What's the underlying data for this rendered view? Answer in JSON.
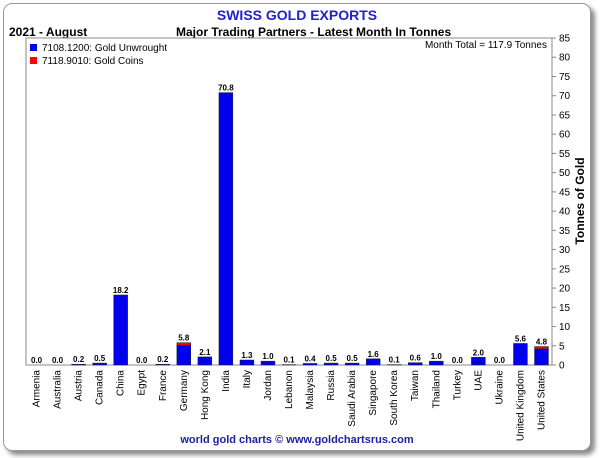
{
  "chart_data": {
    "type": "bar",
    "title": "SWISS GOLD EXPORTS",
    "period": "2021 - August",
    "subtitle": "Major Trading Partners - Latest Month In Tonnes",
    "month_total": "Month Total = 117.9 Tonnes",
    "ylabel": "Tonnes of Gold",
    "ylim": [
      0,
      85
    ],
    "yticks": [
      0,
      5,
      10,
      15,
      20,
      25,
      30,
      35,
      40,
      45,
      50,
      55,
      60,
      65,
      70,
      75,
      80,
      85
    ],
    "grid": false,
    "stacked": true,
    "legend_position": "top-left",
    "categories": [
      "Armenia",
      "Australia",
      "Austria",
      "Canada",
      "China",
      "Egypt",
      "France",
      "Germany",
      "Hong Kong",
      "India",
      "Italy",
      "Jordan",
      "Lebanon",
      "Malaysia",
      "Russia",
      "Saudi Arabia",
      "Singapore",
      "South Korea",
      "Taiwan",
      "Thailand",
      "Turkey",
      "UAE",
      "Ukraine",
      "United Kingdom",
      "United States"
    ],
    "totals": [
      "0.0",
      "0.0",
      "0.2",
      "0.5",
      "18.2",
      "0.0",
      "0.2",
      "5.8",
      "2.1",
      "70.8",
      "1.3",
      "1.0",
      "0.1",
      "0.4",
      "0.5",
      "0.5",
      "1.6",
      "0.1",
      "0.6",
      "1.0",
      "0.0",
      "2.0",
      "0.0",
      "5.6",
      "4.8"
    ],
    "series": [
      {
        "name": "7108.1200: Gold Unwrought",
        "color": "#0000ee",
        "values": [
          0,
          0,
          0.2,
          0.5,
          18.2,
          0,
          0.2,
          5.1,
          2.1,
          70.8,
          1.3,
          1.0,
          0.1,
          0.4,
          0.5,
          0.5,
          1.6,
          0.1,
          0.6,
          1.0,
          0,
          2.0,
          0,
          5.6,
          4.2
        ]
      },
      {
        "name": "7118.9010: Gold Coins",
        "color": "#ff0000",
        "values": [
          0,
          0,
          0,
          0,
          0,
          0,
          0,
          0.7,
          0,
          0,
          0,
          0,
          0,
          0,
          0,
          0,
          0,
          0,
          0,
          0,
          0,
          0,
          0,
          0,
          0.6
        ]
      }
    ]
  },
  "footer": "world gold charts © www.goldchartsrus.com"
}
